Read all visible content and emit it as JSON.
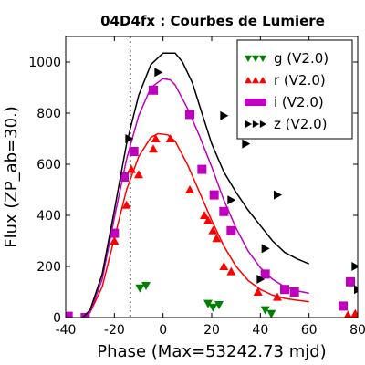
{
  "chart_data": {
    "type": "scatter",
    "title": "04D4fx : Courbes de Lumiere",
    "xlabel": "Phase (Max=53242.73 mjd)",
    "ylabel": "Flux (ZP_ab=30.)",
    "xlim": [
      -40,
      80
    ],
    "ylim": [
      0,
      1100
    ],
    "xticks": [
      "-40",
      "-20",
      "0",
      "20",
      "40",
      "60",
      "80"
    ],
    "xtick_values": [
      -40,
      -20,
      0,
      20,
      40,
      60,
      80
    ],
    "yticks": [
      "0",
      "200",
      "400",
      "600",
      "800",
      "1000"
    ],
    "ytick_values": [
      0,
      200,
      400,
      600,
      800,
      1000
    ],
    "grid": false,
    "legend_position": "top-right",
    "vline_x": -13.5,
    "series": [
      {
        "name": "g (V2.0)",
        "color": "#008000",
        "marker": "triangle-down",
        "points": [
          {
            "x": -9.5,
            "y": 115
          },
          {
            "x": -7,
            "y": 125
          },
          {
            "x": 18.5,
            "y": 55
          },
          {
            "x": 20.5,
            "y": 40
          },
          {
            "x": 23,
            "y": 50
          },
          {
            "x": 42,
            "y": 30
          },
          {
            "x": 44.5,
            "y": 15
          }
        ],
        "curve": []
      },
      {
        "name": "r (V2.0)",
        "color": "#ff0000",
        "marker": "triangle-up",
        "points": [
          {
            "x": -39,
            "y": 0
          },
          {
            "x": -20,
            "y": 300
          },
          {
            "x": -15,
            "y": 440
          },
          {
            "x": -13,
            "y": 580
          },
          {
            "x": -10,
            "y": 560
          },
          {
            "x": -4,
            "y": 660
          },
          {
            "x": -3,
            "y": 700
          },
          {
            "x": 3,
            "y": 700
          },
          {
            "x": 11,
            "y": 500
          },
          {
            "x": 17,
            "y": 400
          },
          {
            "x": 18.5,
            "y": 380
          },
          {
            "x": 20.5,
            "y": 340
          },
          {
            "x": 22,
            "y": 310
          },
          {
            "x": 25,
            "y": 200
          },
          {
            "x": 28,
            "y": 180
          },
          {
            "x": 39,
            "y": 100
          },
          {
            "x": 47,
            "y": 80
          },
          {
            "x": 76,
            "y": 10
          },
          {
            "x": 79,
            "y": 15
          }
        ],
        "curve": [
          {
            "x": -33,
            "y": 0
          },
          {
            "x": -30,
            "y": 20
          },
          {
            "x": -25,
            "y": 120
          },
          {
            "x": -20,
            "y": 310
          },
          {
            "x": -15,
            "y": 500
          },
          {
            "x": -10,
            "y": 630
          },
          {
            "x": -5,
            "y": 705
          },
          {
            "x": -2,
            "y": 720
          },
          {
            "x": 2,
            "y": 715
          },
          {
            "x": 5,
            "y": 690
          },
          {
            "x": 10,
            "y": 600
          },
          {
            "x": 15,
            "y": 490
          },
          {
            "x": 20,
            "y": 380
          },
          {
            "x": 25,
            "y": 280
          },
          {
            "x": 30,
            "y": 200
          },
          {
            "x": 35,
            "y": 145
          },
          {
            "x": 40,
            "y": 110
          },
          {
            "x": 45,
            "y": 88
          },
          {
            "x": 50,
            "y": 75
          },
          {
            "x": 55,
            "y": 68
          },
          {
            "x": 60,
            "y": 62
          }
        ]
      },
      {
        "name": "i (V2.0)",
        "color": "#bf00bf",
        "marker": "square",
        "points": [
          {
            "x": -39,
            "y": 5
          },
          {
            "x": -32,
            "y": 0
          },
          {
            "x": -20,
            "y": 330
          },
          {
            "x": -16,
            "y": 550
          },
          {
            "x": -12,
            "y": 650
          },
          {
            "x": -4,
            "y": 890
          },
          {
            "x": 11,
            "y": 795
          },
          {
            "x": 16,
            "y": 580
          },
          {
            "x": 21,
            "y": 480
          },
          {
            "x": 25,
            "y": 415
          },
          {
            "x": 28,
            "y": 340
          },
          {
            "x": 42,
            "y": 170
          },
          {
            "x": 50,
            "y": 110
          },
          {
            "x": 54,
            "y": 100
          },
          {
            "x": 74,
            "y": 45
          },
          {
            "x": 77,
            "y": 140
          }
        ],
        "curve": [
          {
            "x": -33,
            "y": 0
          },
          {
            "x": -30,
            "y": 20
          },
          {
            "x": -25,
            "y": 150
          },
          {
            "x": -20,
            "y": 390
          },
          {
            "x": -15,
            "y": 620
          },
          {
            "x": -10,
            "y": 790
          },
          {
            "x": -5,
            "y": 900
          },
          {
            "x": 0,
            "y": 935
          },
          {
            "x": 3,
            "y": 930
          },
          {
            "x": 5,
            "y": 910
          },
          {
            "x": 10,
            "y": 820
          },
          {
            "x": 15,
            "y": 710
          },
          {
            "x": 20,
            "y": 590
          },
          {
            "x": 25,
            "y": 460
          },
          {
            "x": 30,
            "y": 350
          },
          {
            "x": 35,
            "y": 260
          },
          {
            "x": 40,
            "y": 195
          },
          {
            "x": 45,
            "y": 150
          },
          {
            "x": 50,
            "y": 120
          },
          {
            "x": 55,
            "y": 105
          },
          {
            "x": 60,
            "y": 95
          }
        ]
      },
      {
        "name": "z (V2.0)",
        "color": "#000000",
        "marker": "triangle-right",
        "points": [
          {
            "x": -14,
            "y": 700
          },
          {
            "x": -2,
            "y": 960
          },
          {
            "x": 25,
            "y": 790
          },
          {
            "x": 34,
            "y": 680
          },
          {
            "x": 28,
            "y": 460
          },
          {
            "x": 47,
            "y": 480
          },
          {
            "x": 42,
            "y": 270
          },
          {
            "x": 40,
            "y": 150
          },
          {
            "x": 79,
            "y": 200
          },
          {
            "x": 80,
            "y": 110
          }
        ],
        "curve": [
          {
            "x": -33,
            "y": 0
          },
          {
            "x": -30,
            "y": 30
          },
          {
            "x": -25,
            "y": 170
          },
          {
            "x": -20,
            "y": 420
          },
          {
            "x": -15,
            "y": 680
          },
          {
            "x": -10,
            "y": 870
          },
          {
            "x": -5,
            "y": 990
          },
          {
            "x": 0,
            "y": 1035
          },
          {
            "x": 5,
            "y": 1035
          },
          {
            "x": 8,
            "y": 1000
          },
          {
            "x": 12,
            "y": 920
          },
          {
            "x": 16,
            "y": 800
          },
          {
            "x": 20,
            "y": 680
          },
          {
            "x": 25,
            "y": 570
          },
          {
            "x": 30,
            "y": 490
          },
          {
            "x": 35,
            "y": 420
          },
          {
            "x": 40,
            "y": 360
          },
          {
            "x": 45,
            "y": 300
          },
          {
            "x": 50,
            "y": 255
          },
          {
            "x": 55,
            "y": 230
          },
          {
            "x": 60,
            "y": 210
          }
        ]
      }
    ]
  }
}
